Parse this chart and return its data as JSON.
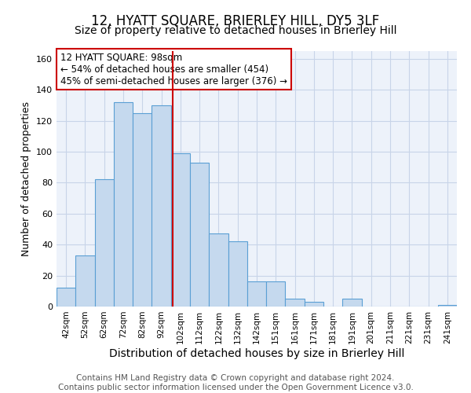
{
  "title": "12, HYATT SQUARE, BRIERLEY HILL, DY5 3LF",
  "subtitle": "Size of property relative to detached houses in Brierley Hill",
  "xlabel": "Distribution of detached houses by size in Brierley Hill",
  "ylabel": "Number of detached properties",
  "bar_labels": [
    "42sqm",
    "52sqm",
    "62sqm",
    "72sqm",
    "82sqm",
    "92sqm",
    "102sqm",
    "112sqm",
    "122sqm",
    "132sqm",
    "142sqm",
    "151sqm",
    "161sqm",
    "171sqm",
    "181sqm",
    "191sqm",
    "201sqm",
    "211sqm",
    "221sqm",
    "231sqm",
    "241sqm"
  ],
  "bar_heights": [
    12,
    33,
    82,
    132,
    125,
    130,
    99,
    93,
    47,
    42,
    16,
    16,
    5,
    3,
    0,
    5,
    0,
    0,
    0,
    0,
    1
  ],
  "bar_color": "#c5d9ee",
  "bar_edge_color": "#5a9fd4",
  "vline_color": "#cc0000",
  "annotation_text": "12 HYATT SQUARE: 98sqm\n← 54% of detached houses are smaller (454)\n45% of semi-detached houses are larger (376) →",
  "annotation_box_color": "#ffffff",
  "annotation_box_edge_color": "#cc0000",
  "ylim": [
    0,
    165
  ],
  "yticks": [
    0,
    20,
    40,
    60,
    80,
    100,
    120,
    140,
    160
  ],
  "grid_color": "#c8d4e8",
  "background_color": "#edf2fa",
  "footer_text": "Contains HM Land Registry data © Crown copyright and database right 2024.\nContains public sector information licensed under the Open Government Licence v3.0.",
  "title_fontsize": 12,
  "subtitle_fontsize": 10,
  "xlabel_fontsize": 10,
  "ylabel_fontsize": 9,
  "footer_fontsize": 7.5,
  "annot_fontsize": 8.5
}
